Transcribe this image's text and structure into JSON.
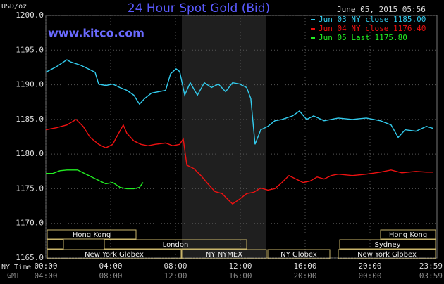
{
  "chart_data": {
    "type": "line",
    "title": "24 Hour Spot Gold (Bid)",
    "y_label": "USD/oz",
    "timestamp": "June 05, 2015 05:56",
    "watermark": "www.kitco.com",
    "x_label": "NY Time",
    "x2_label": "GMT",
    "xlim": [
      0,
      24
    ],
    "xticks": [
      {
        "value": 0,
        "label": "00:00"
      },
      {
        "value": 4,
        "label": "04:00"
      },
      {
        "value": 8,
        "label": "08:00"
      },
      {
        "value": 12,
        "label": "12:00"
      },
      {
        "value": 16,
        "label": "16:00"
      },
      {
        "value": 20,
        "label": "20:00"
      },
      {
        "value": 23.98,
        "label": "23:59"
      }
    ],
    "x2ticks": [
      "04:00",
      "08:00",
      "12:00",
      "16:00",
      "20:00",
      "00:00",
      "03:59"
    ],
    "ylim": [
      1165,
      1200
    ],
    "yticks": [
      {
        "value": 1165,
        "label": "1165.0"
      },
      {
        "value": 1170,
        "label": "1170.0"
      },
      {
        "value": 1175,
        "label": "1175.0"
      },
      {
        "value": 1180,
        "label": "1180.0"
      },
      {
        "value": 1185,
        "label": "1185.0"
      },
      {
        "value": 1190,
        "label": "1190.0"
      },
      {
        "value": 1195,
        "label": "1195.0"
      },
      {
        "value": 1200,
        "label": "1200.0"
      }
    ],
    "grid": true,
    "legend": "top-right",
    "sessions": [
      "Hong Kong",
      "Hong Kong",
      "London",
      "Sydney",
      "New York Globex",
      "NY NYMEX",
      "NY Globex",
      "New York Globex"
    ],
    "series": [
      {
        "name": "Jun 03 NY close 1185.00",
        "color": "#33ccee",
        "x": [
          0,
          0.65,
          1.3,
          1.52,
          2.17,
          2.61,
          3.04,
          3.26,
          3.7,
          4.13,
          4.57,
          5.0,
          5.43,
          5.78,
          6.09,
          6.52,
          6.96,
          7.39,
          7.7,
          8.04,
          8.26,
          8.57,
          8.91,
          9.35,
          9.78,
          10.22,
          10.65,
          11.09,
          11.52,
          11.96,
          12.39,
          12.65,
          12.91,
          13.26,
          13.7,
          14.13,
          14.57,
          15.22,
          15.65,
          16.09,
          16.52,
          17.17,
          18.04,
          18.91,
          19.78,
          20.65,
          21.3,
          21.74,
          22.17,
          22.83,
          23.48,
          23.9
        ],
        "values": [
          1191.8,
          1192.6,
          1193.6,
          1193.3,
          1192.8,
          1192.3,
          1191.8,
          1190.1,
          1189.9,
          1190.1,
          1189.6,
          1189.2,
          1188.5,
          1187.2,
          1188.0,
          1188.8,
          1189.0,
          1189.2,
          1191.6,
          1192.3,
          1191.9,
          1188.5,
          1190.3,
          1188.5,
          1190.3,
          1189.6,
          1190.1,
          1189.0,
          1190.3,
          1190.1,
          1189.6,
          1188.0,
          1181.4,
          1183.5,
          1184.0,
          1184.8,
          1185.0,
          1185.5,
          1186.2,
          1185.0,
          1185.5,
          1184.8,
          1185.2,
          1185.0,
          1185.2,
          1184.8,
          1184.2,
          1182.4,
          1183.5,
          1183.3,
          1184.0,
          1183.7
        ]
      },
      {
        "name": "Jun 04 NY close 1176.40",
        "color": "#ee1111",
        "x": [
          0,
          0.65,
          1.3,
          1.87,
          2.3,
          2.74,
          3.26,
          3.7,
          4.13,
          4.35,
          4.78,
          5.0,
          5.43,
          5.87,
          6.3,
          6.74,
          7.39,
          7.83,
          8.26,
          8.48,
          8.7,
          9.13,
          9.57,
          10.0,
          10.43,
          10.87,
          11.3,
          11.52,
          11.96,
          12.39,
          12.83,
          13.26,
          13.7,
          14.13,
          14.57,
          15.0,
          15.43,
          15.87,
          16.3,
          16.74,
          17.17,
          17.61,
          18.04,
          18.91,
          19.78,
          20.65,
          21.3,
          21.96,
          22.83,
          23.48,
          23.9
        ],
        "values": [
          1183.5,
          1183.8,
          1184.2,
          1185.0,
          1184.0,
          1182.4,
          1181.4,
          1180.9,
          1181.4,
          1182.4,
          1184.2,
          1183.0,
          1181.9,
          1181.4,
          1181.2,
          1181.4,
          1181.6,
          1181.2,
          1181.4,
          1182.2,
          1178.4,
          1177.9,
          1176.9,
          1175.7,
          1174.6,
          1174.3,
          1173.3,
          1172.8,
          1173.5,
          1174.3,
          1174.5,
          1175.1,
          1174.8,
          1175.0,
          1175.9,
          1176.9,
          1176.4,
          1175.9,
          1176.1,
          1176.7,
          1176.4,
          1176.9,
          1177.1,
          1176.9,
          1177.1,
          1177.4,
          1177.7,
          1177.3,
          1177.5,
          1177.4,
          1177.4
        ]
      },
      {
        "name": "Jun 05 Last 1175.80",
        "color": "#22ee22",
        "x": [
          0,
          0.43,
          0.87,
          1.3,
          1.96,
          2.39,
          2.83,
          3.26,
          3.7,
          4.13,
          4.57,
          5.0,
          5.43,
          5.78,
          6.0
        ],
        "values": [
          1177.2,
          1177.2,
          1177.6,
          1177.7,
          1177.7,
          1177.2,
          1176.7,
          1176.2,
          1175.7,
          1175.9,
          1175.2,
          1175.0,
          1175.0,
          1175.2,
          1175.9
        ]
      }
    ]
  }
}
